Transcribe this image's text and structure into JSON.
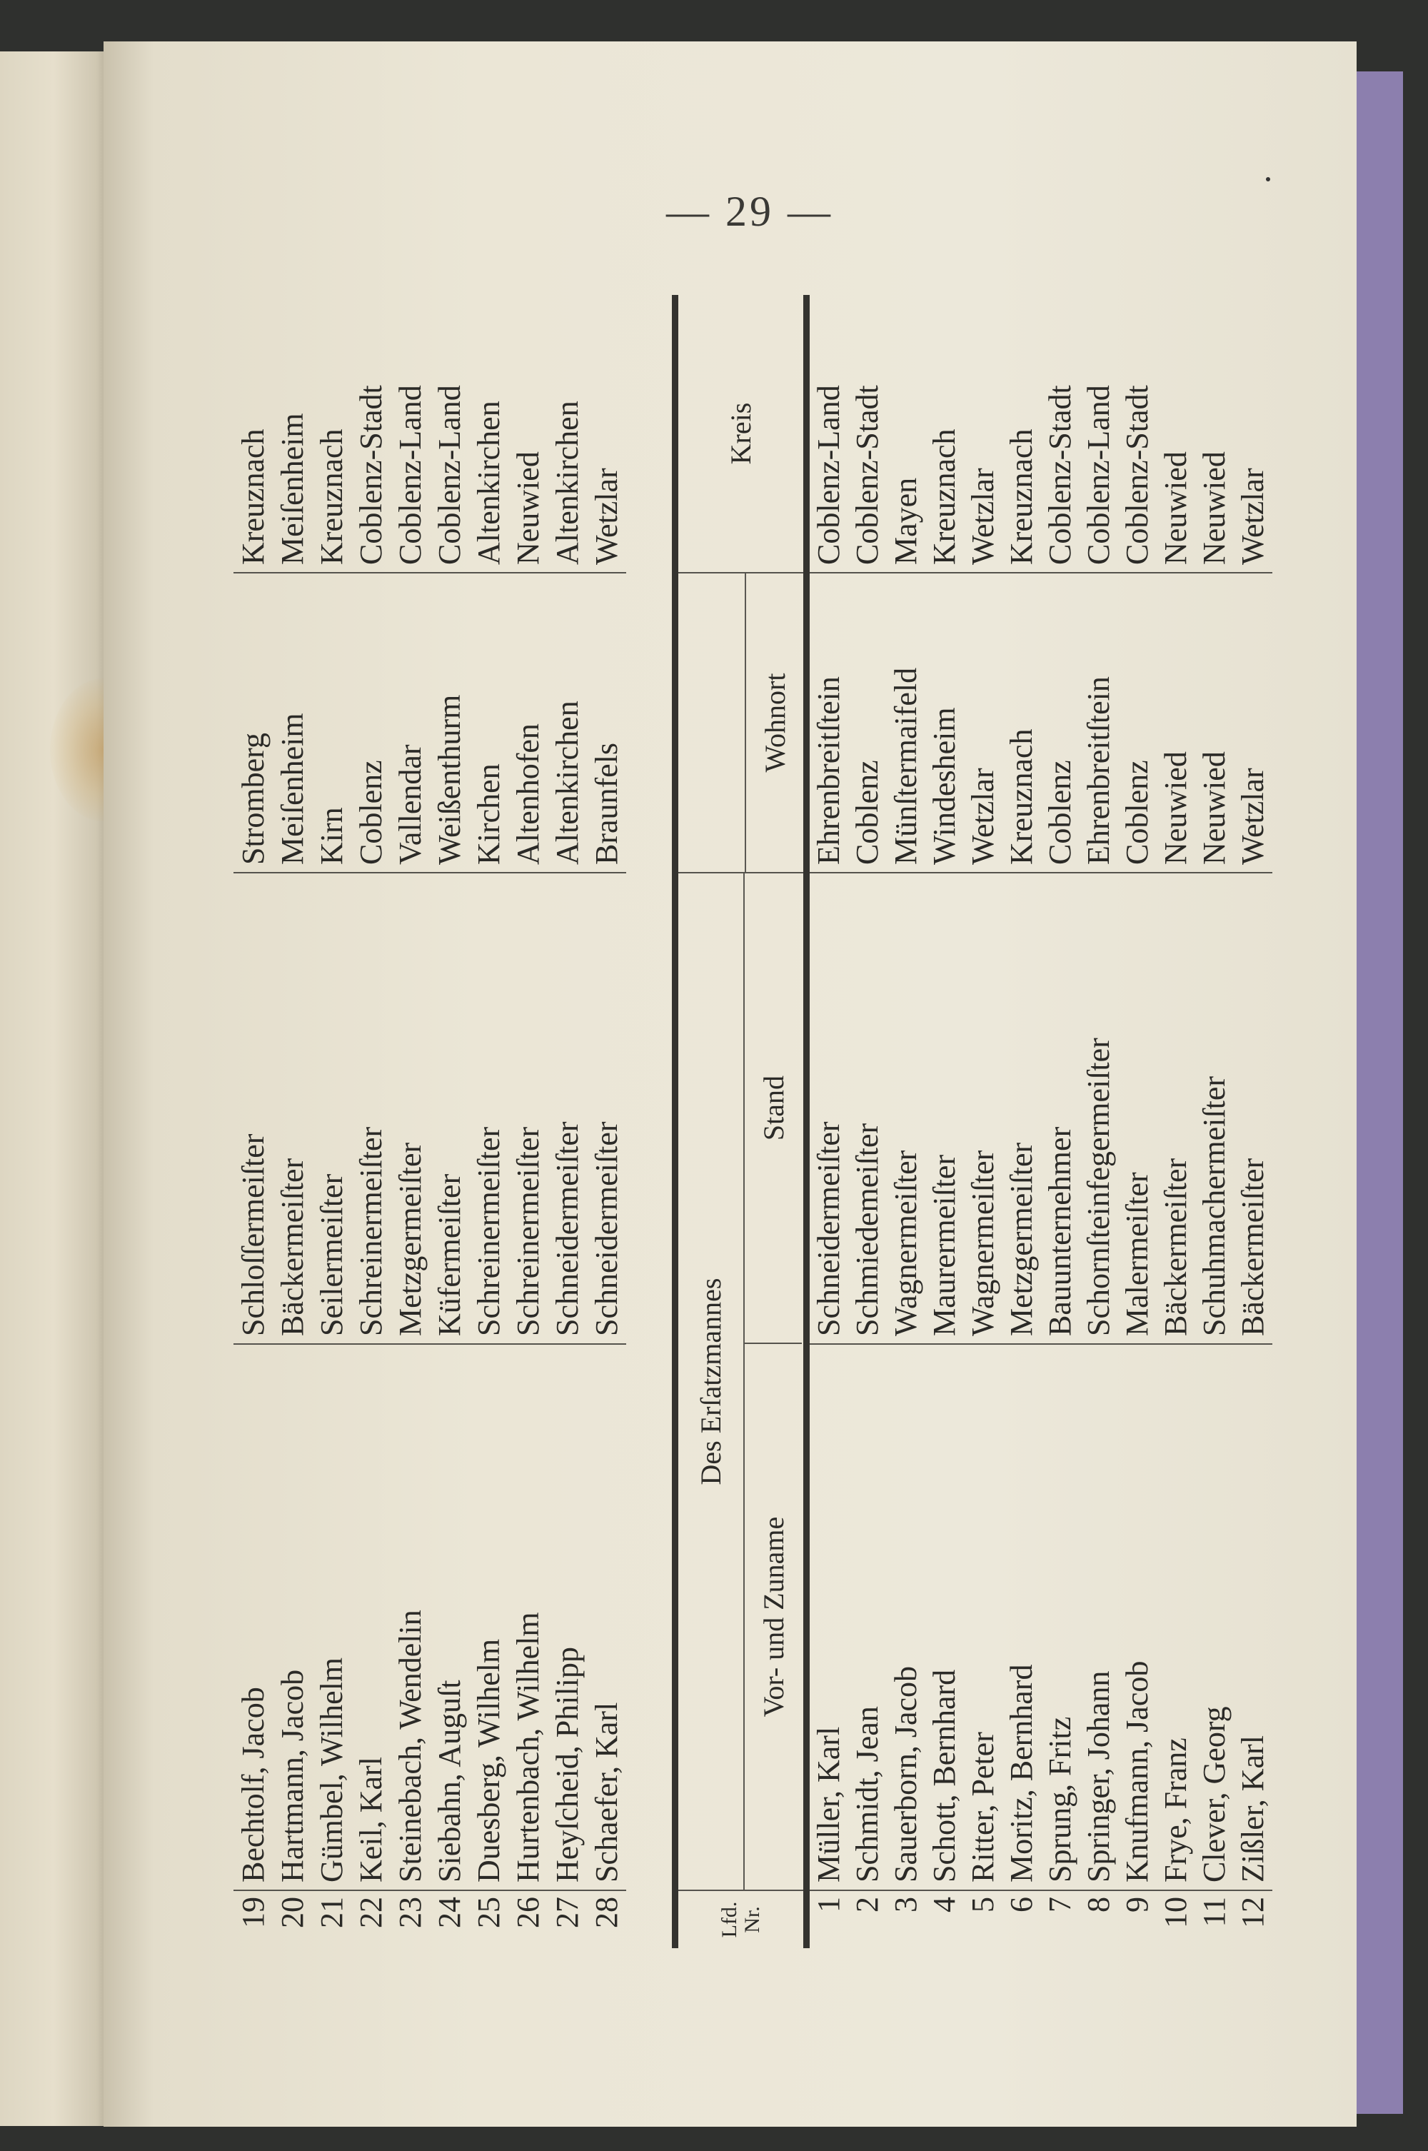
{
  "page_number": "— 29 —",
  "continued_table": {
    "rows": [
      {
        "nr": "19",
        "name": "Bechtolf, Jacob",
        "stand": "Schloſſermeiſter",
        "wohnort": "Stromberg",
        "kreis": "Kreuznach"
      },
      {
        "nr": "20",
        "name": "Hartmann, Jacob",
        "stand": "Bäckermeiſter",
        "wohnort": "Meiſenheim",
        "kreis": "Meiſenheim"
      },
      {
        "nr": "21",
        "name": "Gümbel, Wilhelm",
        "stand": "Seilermeiſter",
        "wohnort": "Kirn",
        "kreis": "Kreuznach"
      },
      {
        "nr": "22",
        "name": "Keil, Karl",
        "stand": "Schreinermeiſter",
        "wohnort": "Coblenz",
        "kreis": "Coblenz-Stadt"
      },
      {
        "nr": "23",
        "name": "Steinebach, Wendelin",
        "stand": "Metzgermeiſter",
        "wohnort": "Vallendar",
        "kreis": "Coblenz-Land"
      },
      {
        "nr": "24",
        "name": "Siebahn, Auguſt",
        "stand": "Küfermeiſter",
        "wohnort": "Weißenthurm",
        "kreis": "Coblenz-Land"
      },
      {
        "nr": "25",
        "name": "Duesberg, Wilhelm",
        "stand": "Schreinermeiſter",
        "wohnort": "Kirchen",
        "kreis": "Altenkirchen"
      },
      {
        "nr": "26",
        "name": "Hurtenbach, Wilhelm",
        "stand": "Schreinermeiſter",
        "wohnort": "Altenhofen",
        "kreis": "Neuwied"
      },
      {
        "nr": "27",
        "name": "Heyſcheid, Philipp",
        "stand": "Schneidermeiſter",
        "wohnort": "Altenkirchen",
        "kreis": "Altenkirchen"
      },
      {
        "nr": "28",
        "name": "Schaefer, Karl",
        "stand": "Schneidermeiſter",
        "wohnort": "Braunfels",
        "kreis": "Wetzlar"
      }
    ]
  },
  "ersatz_table": {
    "headers": {
      "nr_line1": "Lfd.",
      "nr_line2": "Nr.",
      "group": "Des Erſatzmannes",
      "name": "Vor- und Zuname",
      "stand": "Stand",
      "wohnort": "Wohnort",
      "kreis": "Kreis"
    },
    "rows": [
      {
        "nr": "1",
        "name": "Müller, Karl",
        "stand": "Schneidermeiſter",
        "wohnort": "Ehrenbreitſtein",
        "kreis": "Coblenz-Land"
      },
      {
        "nr": "2",
        "name": "Schmidt, Jean",
        "stand": "Schmiedemeiſter",
        "wohnort": "Coblenz",
        "kreis": "Coblenz-Stadt"
      },
      {
        "nr": "3",
        "name": "Sauerborn, Jacob",
        "stand": "Wagnermeiſter",
        "wohnort": "Münſtermaifeld",
        "kreis": "Mayen"
      },
      {
        "nr": "4",
        "name": "Schott, Bernhard",
        "stand": "Maurermeiſter",
        "wohnort": "Windesheim",
        "kreis": "Kreuznach"
      },
      {
        "nr": "5",
        "name": "Ritter, Peter",
        "stand": "Wagnermeiſter",
        "wohnort": "Wetzlar",
        "kreis": "Wetzlar"
      },
      {
        "nr": "6",
        "name": "Moritz, Bernhard",
        "stand": "Metzgermeiſter",
        "wohnort": "Kreuznach",
        "kreis": "Kreuznach"
      },
      {
        "nr": "7",
        "name": "Sprung, Fritz",
        "stand": "Bauunternehmer",
        "wohnort": "Coblenz",
        "kreis": "Coblenz-Stadt"
      },
      {
        "nr": "8",
        "name": "Springer, Johann",
        "stand": "Schornſteinfegermeiſter",
        "wohnort": "Ehrenbreitſtein",
        "kreis": "Coblenz-Land"
      },
      {
        "nr": "9",
        "name": "Knufmann, Jacob",
        "stand": "Malermeiſter",
        "wohnort": "Coblenz",
        "kreis": "Coblenz-Stadt"
      },
      {
        "nr": "10",
        "name": "Frye, Franz",
        "stand": "Bäckermeiſter",
        "wohnort": "Neuwied",
        "kreis": "Neuwied"
      },
      {
        "nr": "11",
        "name": "Clever, Georg",
        "stand": "Schuhmachermeiſter",
        "wohnort": "Neuwied",
        "kreis": "Neuwied"
      },
      {
        "nr": "12",
        "name": "Zißler, Karl",
        "stand": "Bäckermeiſter",
        "wohnort": "Wetzlar",
        "kreis": "Wetzlar"
      }
    ]
  },
  "colors": {
    "paper": "#ece8da",
    "ink": "#2b2a27",
    "cover_edge": "#8c7fae"
  }
}
